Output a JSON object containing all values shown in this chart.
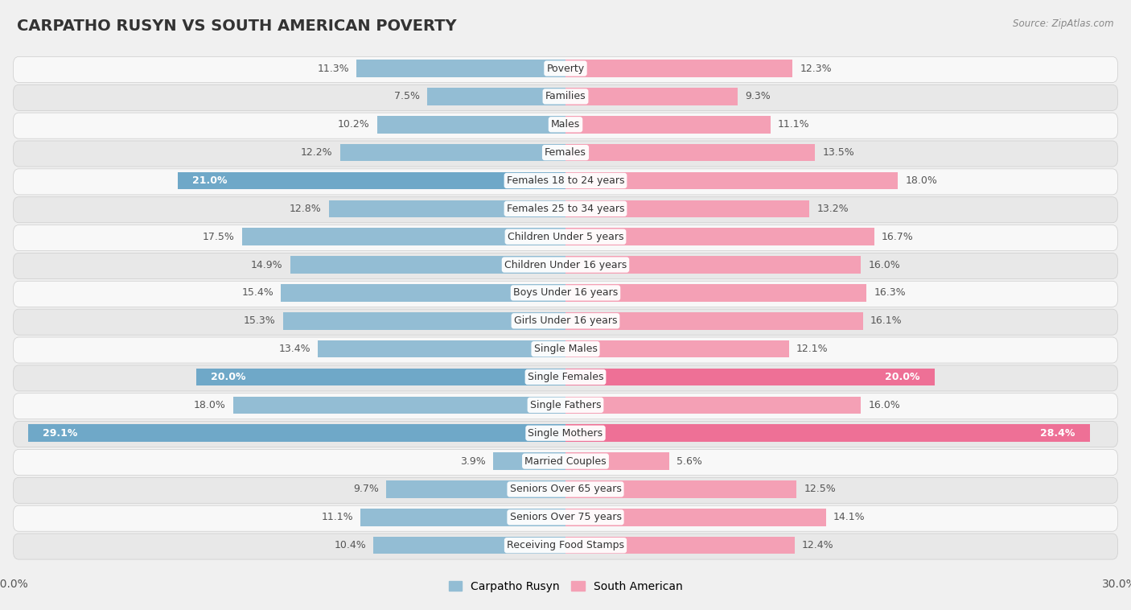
{
  "title": "CARPATHO RUSYN VS SOUTH AMERICAN POVERTY",
  "source": "Source: ZipAtlas.com",
  "categories": [
    "Poverty",
    "Families",
    "Males",
    "Females",
    "Females 18 to 24 years",
    "Females 25 to 34 years",
    "Children Under 5 years",
    "Children Under 16 years",
    "Boys Under 16 years",
    "Girls Under 16 years",
    "Single Males",
    "Single Females",
    "Single Fathers",
    "Single Mothers",
    "Married Couples",
    "Seniors Over 65 years",
    "Seniors Over 75 years",
    "Receiving Food Stamps"
  ],
  "carpatho_rusyn": [
    11.3,
    7.5,
    10.2,
    12.2,
    21.0,
    12.8,
    17.5,
    14.9,
    15.4,
    15.3,
    13.4,
    20.0,
    18.0,
    29.1,
    3.9,
    9.7,
    11.1,
    10.4
  ],
  "south_american": [
    12.3,
    9.3,
    11.1,
    13.5,
    18.0,
    13.2,
    16.7,
    16.0,
    16.3,
    16.1,
    12.1,
    20.0,
    16.0,
    28.4,
    5.6,
    12.5,
    14.1,
    12.4
  ],
  "color_rusyn": "#93BDD4",
  "color_south_american": "#F4A0B5",
  "color_rusyn_highlight": "#6FA8C8",
  "color_south_american_highlight": "#EE7096",
  "highlight_rusyn": [
    4,
    11,
    13
  ],
  "highlight_south_american": [
    11,
    13
  ],
  "bg_color": "#f0f0f0",
  "row_light_color": "#f8f8f8",
  "row_dark_color": "#e8e8e8",
  "axis_max": 30.0,
  "label_fontsize": 9.0,
  "title_fontsize": 14,
  "legend_fontsize": 10,
  "value_color": "#555555"
}
